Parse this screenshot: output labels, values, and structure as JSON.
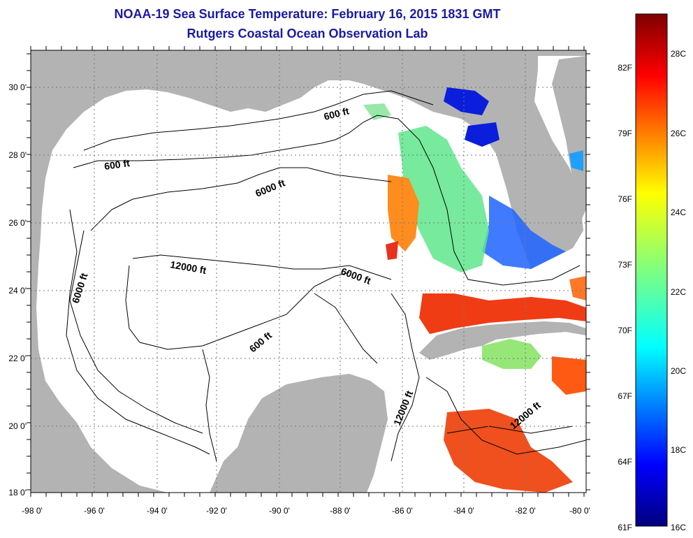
{
  "header": {
    "title": "NOAA-19 Sea Surface Temperature:  February 16, 2015 1831 GMT",
    "subtitle": "Rutgers Coastal Ocean Observation Lab"
  },
  "map": {
    "lon_labels": [
      "-98 0'",
      "-96 0'",
      "-94 0'",
      "-92 0'",
      "-90 0'",
      "-88 0'",
      "-86 0'",
      "-84 0'",
      "-82 0'",
      "-80 0'"
    ],
    "lat_labels": [
      "30 0'",
      "28 0'",
      "26 0'",
      "24 0'",
      "22 0'",
      "20 0'",
      "18 0'"
    ],
    "lon_range": [
      -98,
      -80
    ],
    "lat_range": [
      18,
      31.2
    ],
    "contour_labels": [
      "600 ft",
      "600 ft",
      "6000 ft",
      "12000 ft",
      "6000 ft",
      "6000 ft",
      "600 ft",
      "12000 ft",
      "12000 ft"
    ],
    "colors": {
      "land": "#b3b3b3",
      "ocean": "#ffffff",
      "title": "#1a1aa6"
    }
  },
  "colorbar": {
    "f_labels": [
      "82F",
      "79F",
      "76F",
      "73F",
      "70F",
      "67F",
      "64F",
      "61F"
    ],
    "c_labels": [
      "28C",
      "26C",
      "24C",
      "22C",
      "20C",
      "18C",
      "16C"
    ],
    "range_c": [
      16,
      29.5
    ],
    "colormap": "jet"
  }
}
